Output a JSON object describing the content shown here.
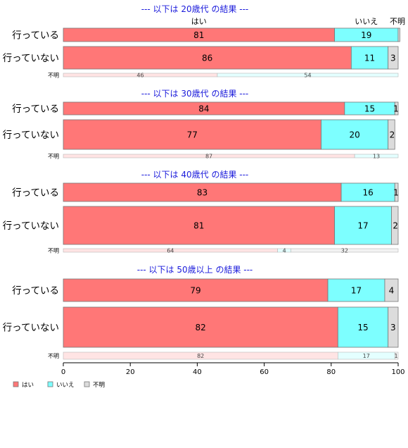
{
  "chart_data": {
    "type": "bar",
    "orientation": "horizontal",
    "stacked": true,
    "xlim": [
      0,
      100
    ],
    "x_ticks": [
      "0",
      "20",
      "40",
      "60",
      "80",
      "100"
    ],
    "column_labels": [
      "はい",
      "いいえ",
      "不明"
    ],
    "colors": [
      "#ff7777",
      "#7dffff",
      "#dcdcdc"
    ],
    "colors_light": [
      "#ffe4e4",
      "#e4ffff",
      "#f2f2f2"
    ],
    "legend": {
      "placement": "bottom-left",
      "entries": [
        "はい",
        "いいえ",
        "不明"
      ]
    },
    "panels": [
      {
        "title": "--- 以下は 20歳代 の結果 ---",
        "rows": [
          {
            "label": "行っている",
            "values": [
              81,
              19,
              0.5
            ],
            "labels": [
              "81",
              "19",
              ""
            ]
          },
          {
            "label": "行っていない",
            "values": [
              86,
              11,
              3
            ],
            "labels": [
              "86",
              "11",
              "3"
            ]
          }
        ],
        "overall": {
          "label": "不明",
          "values": [
            46,
            54,
            0
          ],
          "labels": [
            "46",
            "54",
            ""
          ]
        }
      },
      {
        "title": "--- 以下は 30歳代 の結果 ---",
        "rows": [
          {
            "label": "行っている",
            "values": [
              84,
              15,
              1
            ],
            "labels": [
              "84",
              "15",
              "1"
            ]
          },
          {
            "label": "行っていない",
            "values": [
              77,
              20,
              2
            ],
            "labels": [
              "77",
              "20",
              "2"
            ]
          }
        ],
        "overall": {
          "label": "不明",
          "values": [
            87,
            13,
            0
          ],
          "labels": [
            "87",
            "13",
            ""
          ]
        }
      },
      {
        "title": "--- 以下は 40歳代 の結果 ---",
        "rows": [
          {
            "label": "行っている",
            "values": [
              83,
              16,
              1
            ],
            "labels": [
              "83",
              "16",
              "1"
            ]
          },
          {
            "label": "行っていない",
            "values": [
              81,
              17,
              2
            ],
            "labels": [
              "81",
              "17",
              "2"
            ]
          }
        ],
        "overall": {
          "label": "不明",
          "values": [
            64,
            4,
            32
          ],
          "labels": [
            "64",
            "4",
            "32"
          ]
        }
      },
      {
        "title": "--- 以下は 50歳以上 の結果 ---",
        "rows": [
          {
            "label": "行っている",
            "values": [
              79,
              17,
              4
            ],
            "labels": [
              "79",
              "17",
              "4"
            ]
          },
          {
            "label": "行っていない",
            "values": [
              82,
              15,
              3
            ],
            "labels": [
              "82",
              "15",
              "3"
            ]
          }
        ],
        "overall": {
          "label": "不明",
          "values": [
            82,
            17,
            1
          ],
          "labels": [
            "82",
            "17",
            "1"
          ]
        }
      }
    ]
  }
}
